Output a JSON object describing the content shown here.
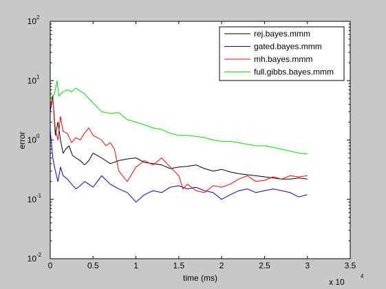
{
  "chart_data": {
    "type": "line",
    "title": "",
    "xlabel": "time (ms)",
    "ylabel": "error",
    "x_multiplier": "x 10",
    "x_multiplier_exp": "4",
    "xlim": [
      0,
      35000
    ],
    "ylim": [
      0.01,
      100
    ],
    "yscale": "log",
    "grid": false,
    "legend_position": "top-right",
    "x_ticks": [
      0,
      5000,
      10000,
      15000,
      20000,
      25000,
      30000,
      35000
    ],
    "x_tick_labels": [
      "0",
      "0.5",
      "1",
      "1.5",
      "2",
      "2.5",
      "3",
      "3.5"
    ],
    "y_ticks": [
      {
        "value": 0.01,
        "base": "10",
        "exp": "-2"
      },
      {
        "value": 0.1,
        "base": "10",
        "exp": "-1"
      },
      {
        "value": 1,
        "base": "10",
        "exp": "0"
      },
      {
        "value": 10,
        "base": "10",
        "exp": "1"
      },
      {
        "value": 100,
        "base": "10",
        "exp": "2"
      }
    ],
    "series": [
      {
        "name": "rej.bayes.mmm",
        "color": "#000000",
        "x": [
          0,
          300,
          600,
          900,
          1200,
          1500,
          1800,
          2200,
          2600,
          3000,
          3500,
          4000,
          4500,
          5000,
          5500,
          6000,
          7000,
          8000,
          9000,
          10000,
          11000,
          12000,
          13000,
          14000,
          15000,
          16000,
          17000,
          18000,
          19000,
          20000,
          21000,
          22000,
          23000,
          24000,
          25000,
          26000,
          27000,
          28000,
          29000,
          30000
        ],
        "y": [
          3.0,
          5.5,
          1.2,
          2.0,
          1.0,
          0.6,
          0.7,
          0.8,
          0.55,
          0.5,
          0.45,
          0.38,
          0.45,
          0.6,
          0.55,
          0.5,
          0.4,
          0.45,
          0.48,
          0.5,
          0.42,
          0.4,
          0.38,
          0.33,
          0.35,
          0.36,
          0.38,
          0.33,
          0.3,
          0.32,
          0.29,
          0.27,
          0.26,
          0.25,
          0.24,
          0.23,
          0.22,
          0.22,
          0.23,
          0.22
        ]
      },
      {
        "name": "gated.bayes.mmm",
        "color": "#0000cc",
        "x": [
          0,
          300,
          600,
          900,
          1200,
          1500,
          2000,
          2500,
          3000,
          3500,
          4000,
          4500,
          5000,
          5500,
          6000,
          7000,
          8000,
          9000,
          10000,
          11000,
          12000,
          13000,
          14000,
          15000,
          16000,
          17000,
          18000,
          19000,
          20000,
          21000,
          22000,
          23000,
          24000,
          25000,
          26000,
          27000,
          28000,
          29000,
          30000
        ],
        "y": [
          1.5,
          0.5,
          0.3,
          0.2,
          0.35,
          0.25,
          0.22,
          0.18,
          0.15,
          0.17,
          0.2,
          0.18,
          0.16,
          0.2,
          0.25,
          0.18,
          0.15,
          0.13,
          0.09,
          0.12,
          0.14,
          0.13,
          0.16,
          0.17,
          0.15,
          0.16,
          0.14,
          0.13,
          0.1,
          0.12,
          0.14,
          0.15,
          0.13,
          0.14,
          0.15,
          0.14,
          0.13,
          0.11,
          0.12
        ]
      },
      {
        "name": "mh.bayes.mmm",
        "color": "#ff0000",
        "x": [
          0,
          300,
          600,
          900,
          1200,
          1500,
          2000,
          2500,
          3000,
          3500,
          4000,
          4500,
          5000,
          5500,
          6000,
          6500,
          7000,
          7500,
          8000,
          9000,
          10000,
          11000,
          12000,
          13000,
          14000,
          15000,
          15500,
          16000,
          17000,
          18000,
          19000,
          20000,
          21000,
          22000,
          23000,
          24000,
          25000,
          26000,
          27000,
          28000,
          29000,
          30000
        ],
        "y": [
          4.0,
          5.0,
          1.5,
          1.0,
          2.5,
          1.4,
          1.3,
          0.9,
          1.1,
          1.0,
          1.3,
          1.6,
          1.2,
          1.1,
          1.0,
          0.8,
          0.9,
          0.7,
          0.3,
          0.2,
          0.35,
          0.45,
          0.38,
          0.5,
          0.35,
          0.25,
          0.15,
          0.18,
          0.14,
          0.13,
          0.17,
          0.16,
          0.18,
          0.22,
          0.25,
          0.2,
          0.21,
          0.24,
          0.22,
          0.25,
          0.24,
          0.25
        ]
      },
      {
        "name": "full.gibbs.bayes.mmm",
        "color": "#00dd00",
        "x": [
          0,
          500,
          800,
          1000,
          1500,
          2000,
          2500,
          3000,
          4000,
          5000,
          6000,
          7000,
          8000,
          9000,
          10000,
          11000,
          12000,
          13000,
          14000,
          15000,
          16000,
          17000,
          18000,
          19000,
          20000,
          21000,
          22000,
          23000,
          24000,
          25000,
          26000,
          27000,
          28000,
          29000,
          30000
        ],
        "y": [
          5.0,
          6.0,
          10.0,
          5.5,
          6.5,
          7.0,
          6.5,
          7.5,
          6.0,
          4.2,
          3.0,
          2.8,
          2.9,
          2.2,
          2.0,
          1.8,
          1.6,
          1.5,
          1.3,
          1.2,
          1.2,
          1.15,
          1.1,
          1.0,
          0.95,
          0.95,
          0.9,
          0.85,
          0.8,
          0.8,
          0.75,
          0.7,
          0.65,
          0.6,
          0.58
        ]
      }
    ]
  }
}
